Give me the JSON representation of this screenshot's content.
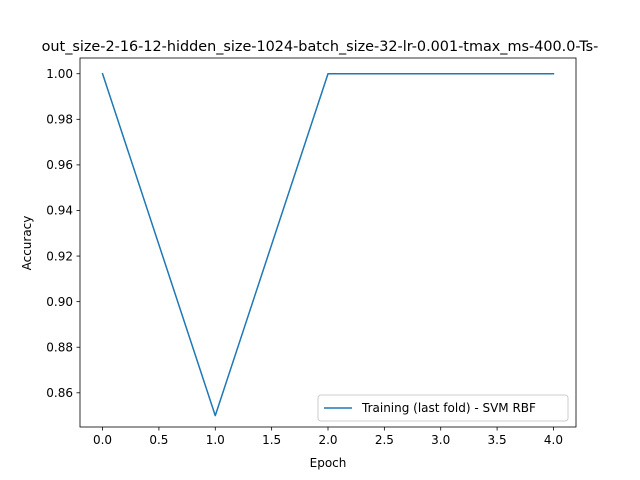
{
  "chart_data": {
    "type": "line",
    "title": "out_size-2-16-12-hidden_size-1024-batch_size-32-lr-0.001-tmax_ms-400.0-Ts-",
    "xlabel": "Epoch",
    "ylabel": "Accuracy",
    "xlim": [
      -0.2,
      4.2
    ],
    "ylim": [
      0.845,
      1.0069
    ],
    "xticks": [
      0.0,
      0.5,
      1.0,
      1.5,
      2.0,
      2.5,
      3.0,
      3.5,
      4.0
    ],
    "xtick_labels": [
      "0.0",
      "0.5",
      "1.0",
      "1.5",
      "2.0",
      "2.5",
      "3.0",
      "3.5",
      "4.0"
    ],
    "yticks": [
      0.86,
      0.88,
      0.9,
      0.92,
      0.94,
      0.96,
      0.98,
      1.0
    ],
    "ytick_labels": [
      "0.86",
      "0.88",
      "0.90",
      "0.92",
      "0.94",
      "0.96",
      "0.98",
      "1.00"
    ],
    "grid": false,
    "legend_position": "bottom-right",
    "series": [
      {
        "name": "Training (last fold) - SVM RBF",
        "color": "#1f77b4",
        "x": [
          0,
          1,
          2,
          3,
          4
        ],
        "y": [
          1.0,
          0.85,
          1.0,
          1.0,
          1.0
        ]
      }
    ]
  }
}
